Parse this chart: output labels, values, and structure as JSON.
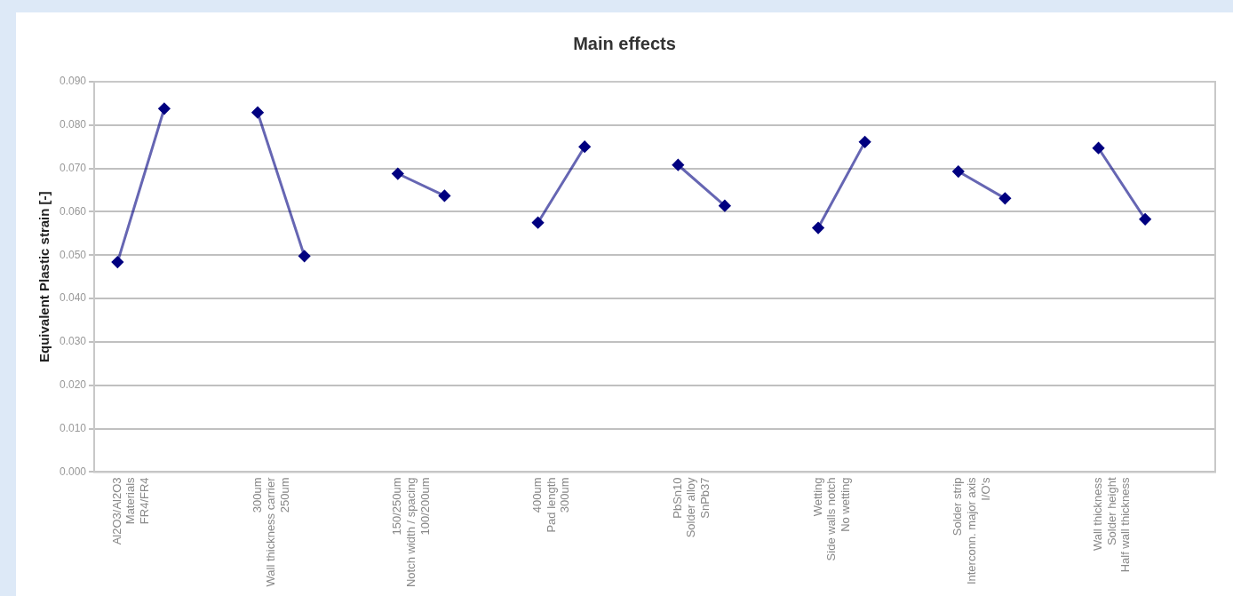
{
  "chart_data": {
    "type": "line",
    "title": "Main effects",
    "ylabel": "Equivalent Plastic strain [-]",
    "categories": [
      "Al2O3/Al2O3\nMaterials\nFR4/FR4",
      null,
      null,
      "300um\nWall thickness carrier\n250um",
      null,
      null,
      "150/250um\nNotch width / spacing\n100/200um",
      null,
      null,
      "400um\nPad length\n300um",
      null,
      null,
      "PbSn10\nSolder alloy\nSnPb37",
      null,
      null,
      "Wetting\nSide walls notch\nNo wetting",
      null,
      null,
      "Solder strip\nInterconn. major axis\nI/O's",
      null,
      null,
      "Wall thickness\nSolder height\nHalf wall thickness",
      null,
      null
    ],
    "series": [
      {
        "color": "#000080",
        "values": [
          0.0484,
          0.0838,
          null,
          0.0829,
          0.0498,
          null,
          0.0688,
          0.0637,
          null,
          0.0575,
          0.075,
          null,
          0.0708,
          0.0614,
          null,
          0.0563,
          0.0761,
          null,
          0.0693,
          0.0631,
          null,
          0.0747,
          0.0583,
          null
        ]
      }
    ],
    "ylim": [
      0,
      0.09
    ],
    "yticks": [
      {
        "value": 0,
        "label": "0.000"
      },
      {
        "value": 0.01,
        "label": "0.010"
      },
      {
        "value": 0.02,
        "label": "0.020"
      },
      {
        "value": 0.03,
        "label": "0.030"
      },
      {
        "value": 0.04,
        "label": "0.040"
      },
      {
        "value": 0.05,
        "label": "0.050"
      },
      {
        "value": 0.06,
        "label": "0.060"
      },
      {
        "value": 0.07,
        "label": "0.070"
      },
      {
        "value": 0.08,
        "label": "0.080"
      },
      {
        "value": 0.09,
        "label": "0.090"
      }
    ],
    "grid": "y",
    "legend": false,
    "marker": "diamond",
    "line_style": "solid"
  }
}
